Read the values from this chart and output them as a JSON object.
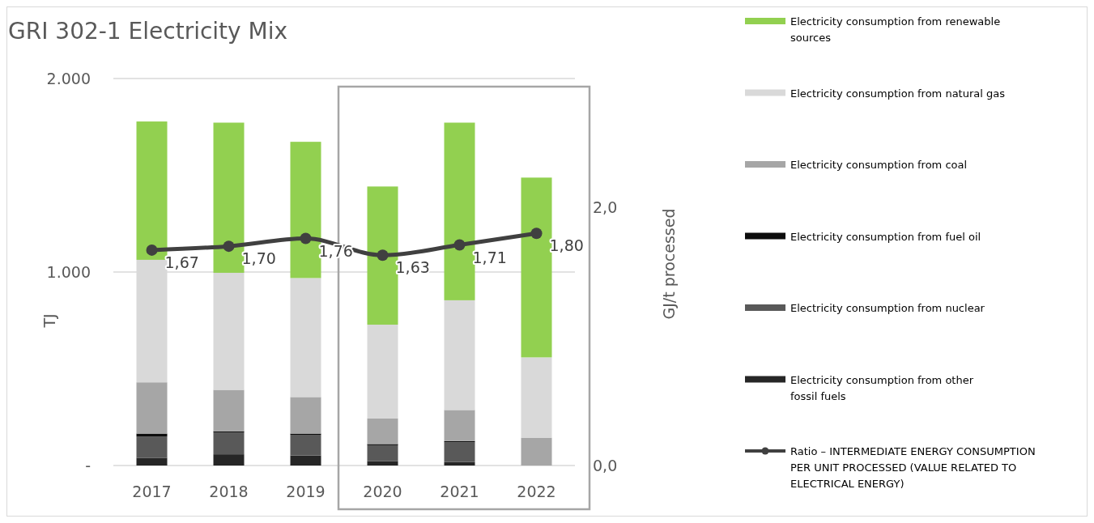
{
  "chart_data": {
    "type": "bar",
    "stacked": true,
    "title": "GRI 302-1 Electricity Mix",
    "ylabel": "TJ",
    "y2label": "GJ/t processed",
    "categories": [
      "2017",
      "2018",
      "2019",
      "2020",
      "2021",
      "2022"
    ],
    "ylim": [
      0,
      2000
    ],
    "yticks": [
      {
        "value": 0,
        "label": "-"
      },
      {
        "value": 1000,
        "label": "1.000"
      },
      {
        "value": 2000,
        "label": "2.000"
      }
    ],
    "y2lim": [
      0,
      3
    ],
    "y2ticks": [
      {
        "value": 0,
        "label": "0,0"
      },
      {
        "value": 2,
        "label": "2,0"
      }
    ],
    "grid": "y",
    "legend": "right",
    "marker": "circle",
    "line_style": "solid",
    "series": [
      {
        "name": "Electricity consumption from other fossil fuels",
        "color": "#262626",
        "values": [
          40,
          58,
          52,
          23,
          18,
          0
        ]
      },
      {
        "name": "Electricity consumption from nuclear",
        "color": "#595959",
        "values": [
          110,
          113,
          107,
          82,
          102,
          0
        ]
      },
      {
        "name": "Electricity consumption from fuel oil",
        "color": "#0d0d0d",
        "values": [
          15,
          6,
          6,
          6,
          6,
          0
        ]
      },
      {
        "name": "Electricity consumption from coal",
        "color": "#a6a6a6",
        "values": [
          265,
          214,
          189,
          132,
          161,
          144
        ]
      },
      {
        "name": "Electricity consumption from natural gas",
        "color": "#d9d9d9",
        "values": [
          633,
          605,
          615,
          485,
          567,
          415
        ]
      },
      {
        "name": "Electricity consumption from renewable sources",
        "color": "#92d050",
        "values": [
          715,
          776,
          704,
          714,
          918,
          929
        ]
      },
      {
        "name": "Ratio – INTERMEDIATE ENERGY CONSUMPTION PER UNIT PROCESSED (VALUE RELATED TO ELECTRICAL ENERGY)",
        "type": "line",
        "axis": "y2",
        "color": "#404040",
        "values": [
          1.67,
          1.7,
          1.76,
          1.63,
          1.71,
          1.8
        ],
        "value_labels": [
          "1,67",
          "1,70",
          "1,76",
          "1,63",
          "1,71",
          "1,80"
        ]
      }
    ]
  }
}
